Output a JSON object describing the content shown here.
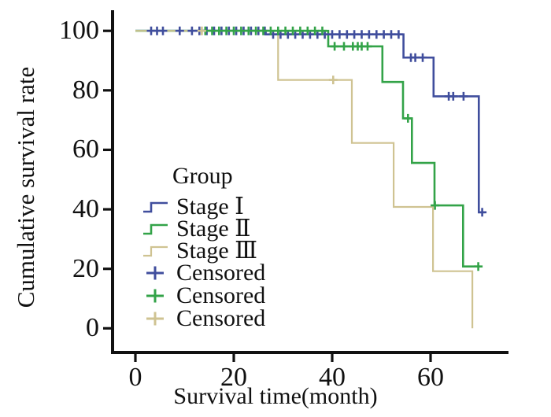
{
  "chart_data": {
    "type": "line",
    "variant": "kaplan_meier_step_survival",
    "title": "",
    "xlabel": "Survival time(month)",
    "ylabel": "Cumulative survival rate",
    "xlim": [
      0,
      76
    ],
    "ylim": [
      0,
      104
    ],
    "xticks": [
      0,
      20,
      40,
      60
    ],
    "yticks": [
      0,
      20,
      40,
      60,
      80,
      100
    ],
    "grid": false,
    "axis_color": "#111111",
    "legend": {
      "title": "Group",
      "position": "inside-lower-left",
      "items": [
        {
          "label": "Stage Ⅰ",
          "marker": "step",
          "color": "#404e9d"
        },
        {
          "label": "Stage Ⅱ",
          "marker": "step",
          "color": "#33a348"
        },
        {
          "label": "Stage Ⅲ",
          "marker": "step",
          "color": "#cfc392"
        },
        {
          "label": "Censored",
          "marker": "plus",
          "color": "#404e9d"
        },
        {
          "label": "Censored",
          "marker": "plus",
          "color": "#33a348"
        },
        {
          "label": "Censored",
          "marker": "plus",
          "color": "#cfc392"
        }
      ]
    },
    "series": [
      {
        "name": "Stage Ⅰ",
        "color": "#404e9d",
        "line_width": 2.6,
        "steps": [
          [
            0,
            100
          ],
          [
            26.5,
            100
          ],
          [
            26.5,
            98.8
          ],
          [
            54.5,
            98.8
          ],
          [
            54.5,
            91
          ],
          [
            60.6,
            91
          ],
          [
            60.6,
            78
          ],
          [
            69.8,
            78
          ],
          [
            69.8,
            39
          ],
          [
            71,
            39
          ]
        ],
        "censored": [
          [
            3.2,
            100
          ],
          [
            4.4,
            100
          ],
          [
            5.6,
            100
          ],
          [
            9,
            100
          ],
          [
            11.5,
            100
          ],
          [
            13,
            100
          ],
          [
            14.5,
            100
          ],
          [
            16,
            100
          ],
          [
            17.5,
            100
          ],
          [
            19,
            100
          ],
          [
            20.5,
            100
          ],
          [
            22,
            100
          ],
          [
            23.5,
            100
          ],
          [
            25,
            100
          ],
          [
            26.3,
            100
          ],
          [
            28,
            98.8
          ],
          [
            29.5,
            98.8
          ],
          [
            31,
            98.8
          ],
          [
            32.5,
            98.8
          ],
          [
            34,
            98.8
          ],
          [
            35.5,
            98.8
          ],
          [
            37,
            98.8
          ],
          [
            38.5,
            98.8
          ],
          [
            40,
            98.8
          ],
          [
            41.5,
            98.8
          ],
          [
            43,
            98.8
          ],
          [
            44.5,
            98.8
          ],
          [
            46,
            98.8
          ],
          [
            47.5,
            98.8
          ],
          [
            49,
            98.8
          ],
          [
            50.5,
            98.8
          ],
          [
            52,
            98.8
          ],
          [
            53.5,
            98.8
          ],
          [
            56,
            91
          ],
          [
            56.9,
            91
          ],
          [
            58.4,
            91
          ],
          [
            63.7,
            78
          ],
          [
            64.6,
            78
          ],
          [
            66.7,
            78
          ],
          [
            70.5,
            39
          ]
        ]
      },
      {
        "name": "Stage Ⅱ",
        "color": "#33a348",
        "line_width": 2.6,
        "steps": [
          [
            0,
            100
          ],
          [
            39.2,
            100
          ],
          [
            39.2,
            94.8
          ],
          [
            50.2,
            94.8
          ],
          [
            50.2,
            82.8
          ],
          [
            54.4,
            82.8
          ],
          [
            54.4,
            70.6
          ],
          [
            56.2,
            70.6
          ],
          [
            56.2,
            55.6
          ],
          [
            60.8,
            55.6
          ],
          [
            60.8,
            41.3
          ],
          [
            66.6,
            41.3
          ],
          [
            66.6,
            20.8
          ],
          [
            70.1,
            20.8
          ]
        ],
        "censored": [
          [
            14.2,
            100
          ],
          [
            15.6,
            100
          ],
          [
            17,
            100
          ],
          [
            18.5,
            100
          ],
          [
            20,
            100
          ],
          [
            21.5,
            100
          ],
          [
            23,
            100
          ],
          [
            24.5,
            100
          ],
          [
            26,
            100
          ],
          [
            27.5,
            100
          ],
          [
            29,
            100
          ],
          [
            30.5,
            100
          ],
          [
            32,
            100
          ],
          [
            33.5,
            100
          ],
          [
            35,
            100
          ],
          [
            36.5,
            100
          ],
          [
            38,
            100
          ],
          [
            40.5,
            94.8
          ],
          [
            42.4,
            94.8
          ],
          [
            44.2,
            94.8
          ],
          [
            45.2,
            94.8
          ],
          [
            46,
            94.8
          ],
          [
            47.2,
            94.8
          ],
          [
            55.4,
            70.6
          ],
          [
            60.9,
            41.3
          ],
          [
            69.7,
            20.8
          ]
        ]
      },
      {
        "name": "Stage Ⅲ",
        "color": "#cfc392",
        "line_width": 2.2,
        "steps": [
          [
            0,
            100
          ],
          [
            29,
            100
          ],
          [
            29,
            83.5
          ],
          [
            44,
            83.5
          ],
          [
            44,
            62.3
          ],
          [
            52.5,
            62.3
          ],
          [
            52.5,
            40.8
          ],
          [
            60.5,
            40.8
          ],
          [
            60.5,
            19.2
          ],
          [
            68.5,
            19.2
          ],
          [
            68.5,
            0
          ]
        ],
        "censored": [
          [
            13.5,
            100
          ],
          [
            40.2,
            83.5
          ]
        ]
      }
    ]
  }
}
